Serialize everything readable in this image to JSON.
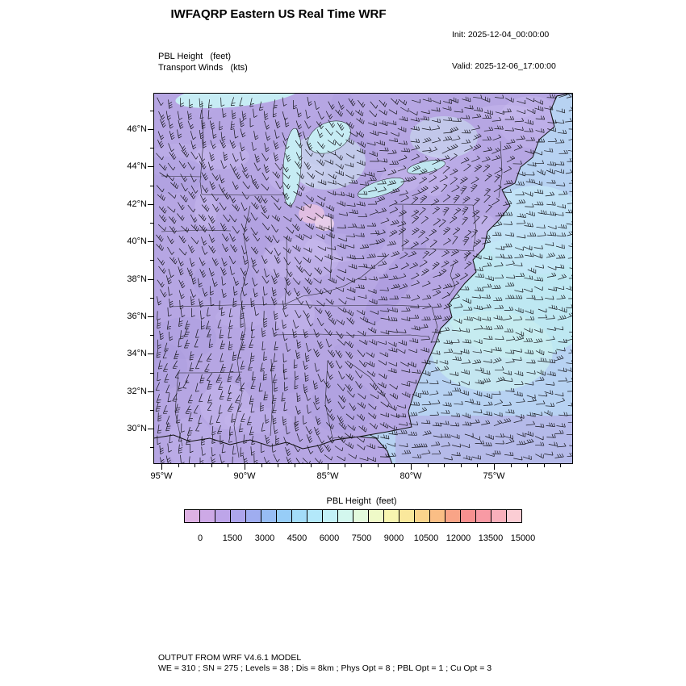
{
  "header": {
    "title": "IWFAQRP Eastern US Real Time WRF",
    "init_label": "Init: 2025-12-04_00:00:00",
    "valid_label": "Valid: 2025-12-06_17:00:00"
  },
  "map": {
    "field_label": "PBL Height   (feet)",
    "winds_label": "Transport Winds   (kts)"
  },
  "chart_data": {
    "type": "heatmap",
    "title": "PBL Height (feet) with Transport Winds (kts) over Eastern US",
    "x_axis": {
      "label": "",
      "tick_labels": [
        "95°W",
        "90°W",
        "85°W",
        "80°W",
        "75°W"
      ]
    },
    "y_axis": {
      "label": "",
      "tick_labels": [
        "46°N",
        "44°N",
        "42°N",
        "40°N",
        "38°N",
        "36°N",
        "34°N",
        "32°N",
        "30°N"
      ]
    },
    "colorbar": {
      "title": "PBL Height  (feet)",
      "orientation": "horizontal",
      "tick_values": [
        0,
        1500,
        3000,
        4500,
        6000,
        7500,
        9000,
        10500,
        12000,
        13500,
        15000
      ],
      "colors": [
        "#ddb1e3",
        "#cda9e6",
        "#bda5e9",
        "#ada5ec",
        "#9fadf0",
        "#97bdf4",
        "#97cdf7",
        "#a3dcf9",
        "#b3e8fa",
        "#c3f1f7",
        "#d3f7ee",
        "#e3fadd",
        "#effac8",
        "#f8f5b0",
        "#fae89c",
        "#fad48c",
        "#fabe85",
        "#f9a487",
        "#f8908f",
        "#f89aa4",
        "#f9b0bb",
        "#fbcdd4"
      ]
    },
    "observed_field_note": "PBL heights across the domain are predominantly in the low (0-4500 ft) purple-to-light-blue portion of the scale; lighter blue/cyan shades appear over the Great Lakes, Michigan, the Northeast and offshore Atlantic; dense wind barbs cover the entire map."
  },
  "footer": {
    "line1": "OUTPUT FROM WRF V4.6.1 MODEL",
    "line2": "WE = 310 ; SN = 275 ; Levels = 38 ; Dis = 8km ; Phys Opt = 8 ; PBL Opt = 1 ; Cu Opt = 3"
  }
}
